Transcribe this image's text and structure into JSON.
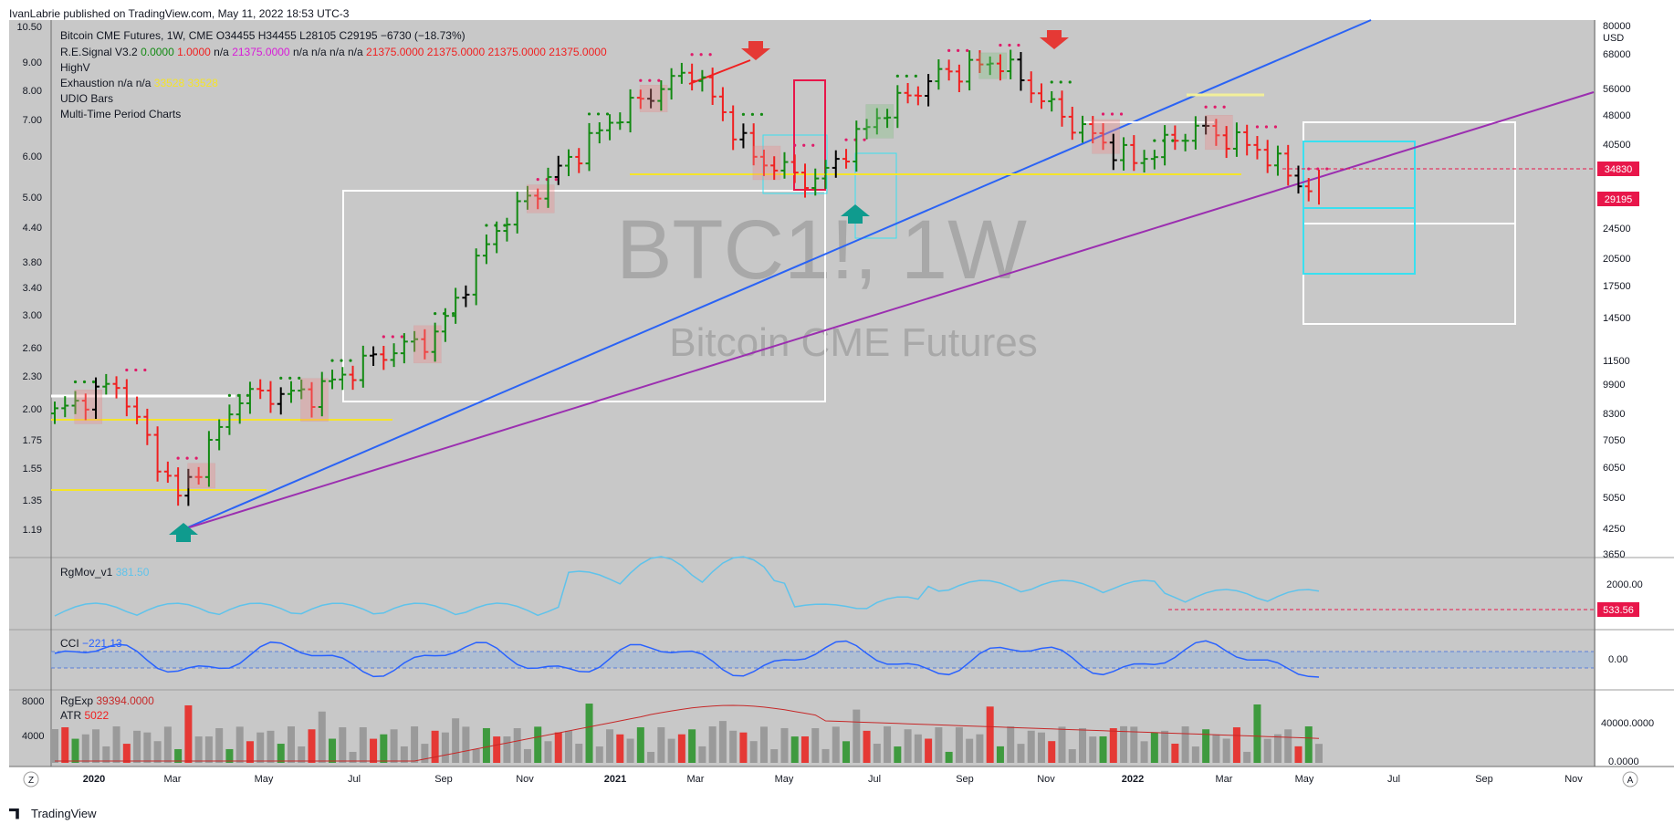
{
  "header": {
    "published": "IvanLabrie published on TradingView.com, May 11, 2022 18:53 UTC-3"
  },
  "footer": {
    "brand": "TradingView",
    "zoom_btn": "Z",
    "auto_btn": "A"
  },
  "watermark": {
    "symbol": "BTC1!, 1W",
    "name": "Bitcoin CME Futures"
  },
  "legend": {
    "title": "Bitcoin CME Futures, 1W, CME",
    "ohlc": "O34455 H34455 L28105 C29195 −6730 (−18.73%)",
    "resignal_name": "R.E.Signal V3.2",
    "resignal_v1": "0.0000",
    "resignal_v2": "1.0000",
    "resignal_v3": "n/a",
    "resignal_v4": "21375.0000",
    "resignal_v5": "n/a n/a n/a n/a",
    "resignal_v6": "21375.0000  21375.0000  21375.0000  21375.0000",
    "highv": "HighV",
    "exhaustion_name": "Exhaustion",
    "exhaustion_vals": "n/a  n/a",
    "exhaustion_yel": "33528  33528",
    "udio": "UDIO Bars",
    "mtp": "Multi-Time Period Charts"
  },
  "price_axis": {
    "left": [
      "10.50",
      "9.00",
      "8.00",
      "7.00",
      "6.00",
      "5.00",
      "4.40",
      "3.80",
      "3.40",
      "3.00",
      "2.60",
      "2.30",
      "2.00",
      "1.75",
      "1.55",
      "1.35",
      "1.19"
    ],
    "right": [
      "80000",
      "USD",
      "68000",
      "56000",
      "48000",
      "40500",
      "24500",
      "20500",
      "17500",
      "14500",
      "11500",
      "9900",
      "8300",
      "7050",
      "6050",
      "5050",
      "4250",
      "3650"
    ],
    "badge_upper": "34830",
    "badge_current": "29195"
  },
  "time_axis": [
    "2020",
    "Mar",
    "May",
    "Jul",
    "Sep",
    "Nov",
    "2021",
    "Mar",
    "May",
    "Jul",
    "Sep",
    "Nov",
    "2022",
    "Mar",
    "May",
    "Jul",
    "Sep",
    "Nov"
  ],
  "rgmov": {
    "label": "RgMov_v1",
    "value": "381.50",
    "axis_top": "2000.00",
    "badge": "533.56"
  },
  "cci": {
    "label": "CCI",
    "value": "−221.13",
    "axis_mid": "0.00"
  },
  "rgexp": {
    "label": "RgExp",
    "value": "39394.0000",
    "atr_label": "ATR",
    "atr_value": "5022",
    "axis_left_top": "8000",
    "axis_left_mid": "4000",
    "axis_right_top": "40000.0000",
    "axis_right_bot": "0.0000"
  },
  "colors": {
    "up": "#138a13",
    "down": "#f02020",
    "neutral": "#000000",
    "blue_line": "#2a63f5",
    "purple_line": "#9b2fb0",
    "yellow": "#f5e42a",
    "cyan": "#39e0f0",
    "panel_bg": "#c8c8c8",
    "badge_red": "#e8164a",
    "rgmov_line": "#5fc3eb",
    "cci_line": "#2962ff"
  },
  "chart_data": {
    "type": "bar",
    "title": "Bitcoin CME Futures, 1W, CME",
    "x": "weekly bars, Jan 2020 – May 2022",
    "y_axis_right": "USD (log scale)",
    "y_range": [
      3650,
      80000
    ],
    "last_ohlc": {
      "open": 34455,
      "high": 34455,
      "low": 28105,
      "close": 29195,
      "change": -6730,
      "change_pct": -18.73
    },
    "weekly_close_samples": [
      {
        "x": "Jan 2020",
        "y": 8300
      },
      {
        "x": "Feb 2020",
        "y": 9900
      },
      {
        "x": "Mar 2020",
        "y": 5050
      },
      {
        "x": "May 2020",
        "y": 9200
      },
      {
        "x": "Jul 2020",
        "y": 9300
      },
      {
        "x": "Aug 2020",
        "y": 11500
      },
      {
        "x": "Oct 2020",
        "y": 13000
      },
      {
        "x": "Dec 2020",
        "y": 24500
      },
      {
        "x": "Jan 2021",
        "y": 34500
      },
      {
        "x": "Feb 2021",
        "y": 48000
      },
      {
        "x": "Apr 2021",
        "y": 62000
      },
      {
        "x": "May 2021",
        "y": 37000
      },
      {
        "x": "Jul 2021",
        "y": 32000
      },
      {
        "x": "Aug 2021",
        "y": 47000
      },
      {
        "x": "Oct 2021",
        "y": 60000
      },
      {
        "x": "Nov 2021",
        "y": 65000
      },
      {
        "x": "Dec 2021",
        "y": 47000
      },
      {
        "x": "Jan 2022",
        "y": 36000
      },
      {
        "x": "Mar 2022",
        "y": 44000
      },
      {
        "x": "Apr 2022",
        "y": 39000
      },
      {
        "x": "May 2022",
        "y": 29195
      }
    ],
    "horizontal_levels": [
      {
        "label": "34830",
        "y": 34830
      },
      {
        "label": "29195",
        "y": 29195
      }
    ],
    "sub_panels": [
      "RgMov_v1",
      "CCI",
      "RgExp / ATR"
    ]
  }
}
